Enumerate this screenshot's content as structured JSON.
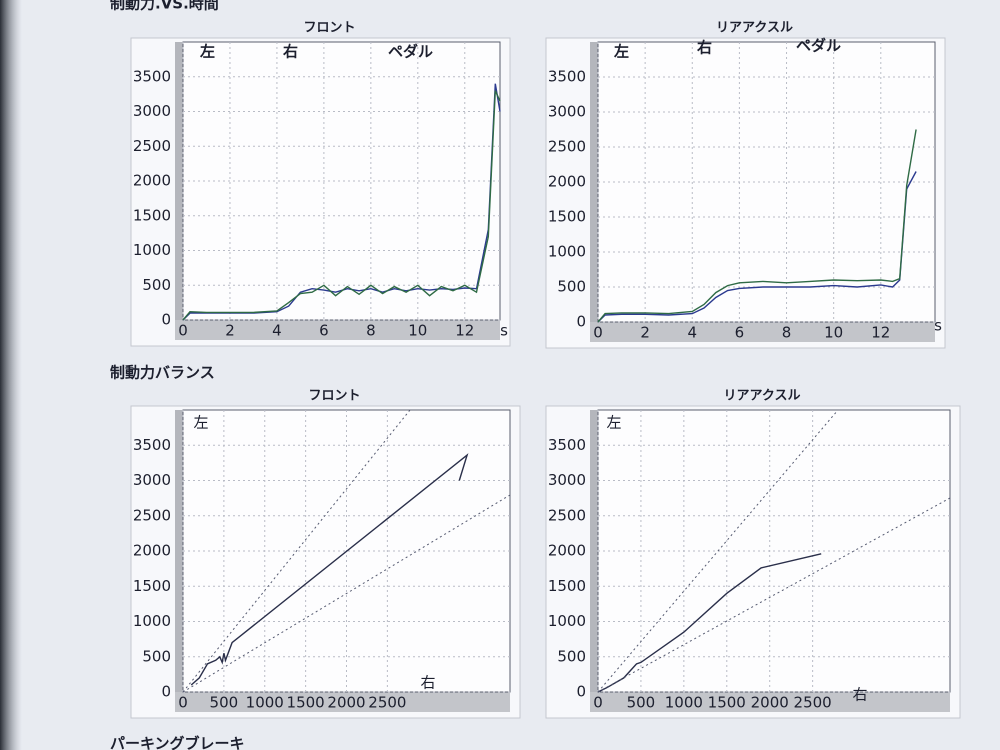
{
  "headings": [
    "制動力.VS.時間",
    "制動力バランス",
    "パーキングブレーキ"
  ],
  "chart_data": [
    {
      "type": "line",
      "title": "フロント",
      "x_label": "s",
      "x": [
        0,
        0.3,
        1,
        2,
        3,
        4,
        4.5,
        5,
        5.5,
        6,
        6.5,
        7,
        7.5,
        8,
        8.5,
        9,
        9.5,
        10,
        10.5,
        11,
        11.5,
        12,
        12.5,
        13,
        13.3,
        13.5
      ],
      "series": [
        {
          "name": "左",
          "color": "#2b3a8f",
          "values": [
            0,
            100,
            100,
            100,
            100,
            120,
            200,
            400,
            450,
            430,
            400,
            450,
            420,
            450,
            400,
            450,
            420,
            450,
            430,
            450,
            440,
            460,
            450,
            1300,
            3400,
            3000
          ]
        },
        {
          "name": "右",
          "color": "#2f6b45",
          "values": [
            0,
            120,
            110,
            110,
            110,
            130,
            250,
            380,
            400,
            500,
            350,
            480,
            370,
            500,
            380,
            480,
            400,
            500,
            350,
            480,
            420,
            500,
            400,
            1200,
            3300,
            3150
          ]
        },
        {
          "name": "ペダル",
          "color": "#222222",
          "values": [
            null,
            null,
            null,
            null,
            null,
            null,
            null,
            null,
            null,
            null,
            null,
            null,
            null,
            null,
            null,
            null,
            null,
            null,
            null,
            null,
            null,
            null,
            null,
            null,
            null,
            null
          ]
        }
      ],
      "xlim": [
        0,
        13.5
      ],
      "xticks": [
        0,
        2,
        4,
        6,
        8,
        10,
        12
      ],
      "ylim": [
        0,
        4000
      ],
      "yticks": [
        0,
        500,
        1000,
        1500,
        2000,
        2500,
        3000,
        3500
      ],
      "grid": true
    },
    {
      "type": "line",
      "title": "リアアクスル",
      "x_label": "s",
      "x": [
        0,
        0.3,
        1,
        2,
        3,
        4,
        4.5,
        5,
        5.5,
        6,
        7,
        8,
        9,
        10,
        11,
        12,
        12.5,
        12.8,
        13.1,
        13.5
      ],
      "series": [
        {
          "name": "左",
          "color": "#2b3a8f",
          "values": [
            0,
            100,
            110,
            110,
            100,
            120,
            200,
            350,
            450,
            480,
            500,
            500,
            500,
            520,
            500,
            530,
            500,
            600,
            1900,
            2150
          ]
        },
        {
          "name": "右",
          "color": "#2f6b45",
          "values": [
            0,
            120,
            130,
            130,
            120,
            150,
            250,
            420,
            520,
            560,
            580,
            560,
            580,
            600,
            590,
            600,
            580,
            620,
            1950,
            2750
          ]
        },
        {
          "name": "ペダル",
          "color": "#222222",
          "values": [
            null,
            null,
            null,
            null,
            null,
            null,
            null,
            null,
            null,
            null,
            null,
            null,
            null,
            null,
            null,
            null,
            null,
            null,
            null,
            null
          ]
        }
      ],
      "xlim": [
        0,
        14.3
      ],
      "xticks": [
        0,
        2,
        4,
        6,
        8,
        10,
        12
      ],
      "ylim": [
        0,
        4000
      ],
      "yticks": [
        0,
        500,
        1000,
        1500,
        2000,
        2500,
        3000,
        3500
      ],
      "grid": true
    },
    {
      "type": "line",
      "title": "フロント",
      "x_label": "右",
      "y_label": "左",
      "color": "#2a2f4a",
      "x": [
        100,
        200,
        300,
        400,
        450,
        480,
        500,
        520,
        600,
        3475,
        3380
      ],
      "values": [
        100,
        200,
        400,
        450,
        500,
        420,
        550,
        450,
        700,
        3360,
        3000
      ],
      "xlim": [
        0,
        4000
      ],
      "xticks": [
        0,
        500,
        1000,
        1500,
        2000,
        2500
      ],
      "ylim": [
        0,
        4000
      ],
      "yticks": [
        0,
        500,
        1000,
        1500,
        2000,
        2500,
        3000,
        3500
      ],
      "grid": true
    },
    {
      "type": "line",
      "title": "リアアクスル",
      "x_label": "右",
      "y_label": "左",
      "color": "#2a2f4a",
      "x": [
        0,
        100,
        300,
        450,
        500,
        1000,
        1500,
        1900,
        2600
      ],
      "values": [
        0,
        60,
        200,
        400,
        420,
        850,
        1400,
        1760,
        1960
      ],
      "xlim": [
        0,
        4100
      ],
      "xticks": [
        0,
        500,
        1000,
        1500,
        2000,
        2500
      ],
      "ylim": [
        0,
        4000
      ],
      "yticks": [
        0,
        500,
        1000,
        1500,
        2000,
        2500,
        3000,
        3500
      ],
      "grid": true
    }
  ]
}
